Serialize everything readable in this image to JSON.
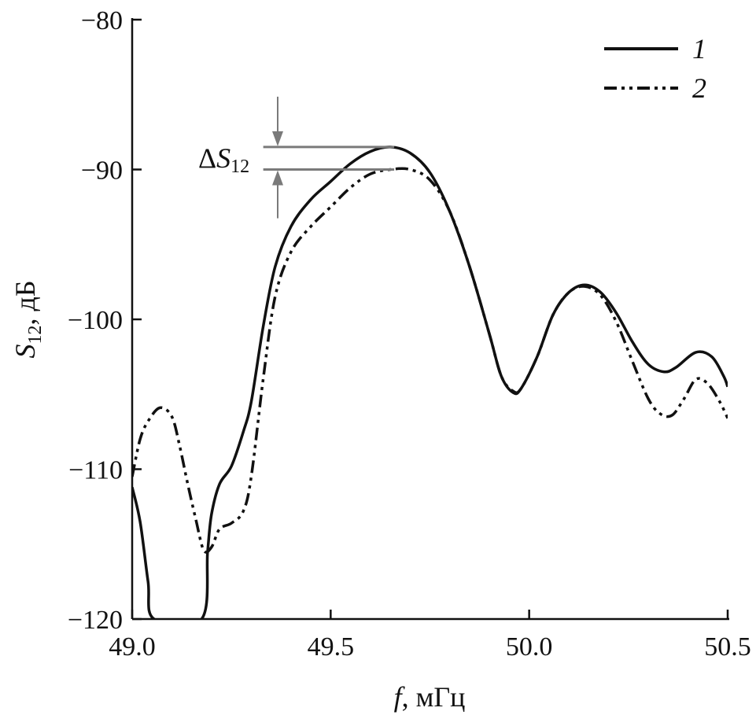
{
  "chart_data": {
    "type": "line",
    "xlabel_var": "f",
    "xlabel_unit": ", мГц",
    "ylabel_var": "S",
    "ylabel_sub": "12",
    "ylabel_unit": ", дБ",
    "xlim": [
      49.0,
      50.5
    ],
    "ylim": [
      -120,
      -80
    ],
    "x_ticks": [
      49.0,
      49.5,
      50.0,
      50.5
    ],
    "x_tick_labels": [
      "49.0",
      "49.5",
      "50.0",
      "50.5"
    ],
    "y_ticks": [
      -80,
      -90,
      -100,
      -110,
      -120
    ],
    "y_tick_labels": [
      "−80",
      "−90",
      "−100",
      "−110",
      "−120"
    ],
    "legend_position": "top-right",
    "annotation": {
      "prefix": "Δ",
      "var": "S",
      "sub": "12",
      "upper_y": -88.5,
      "lower_y": -90.0,
      "x_start": 49.35,
      "x_end": 49.66
    },
    "series": [
      {
        "name": "1",
        "style": "solid",
        "color": "#111111",
        "points": [
          [
            49.0,
            -111.2
          ],
          [
            49.02,
            -113.5
          ],
          [
            49.04,
            -117.5
          ],
          [
            49.055,
            -120.0
          ],
          [
            49.175,
            -120.0
          ],
          [
            49.19,
            -115.5
          ],
          [
            49.2,
            -113.0
          ],
          [
            49.22,
            -111.0
          ],
          [
            49.25,
            -109.8
          ],
          [
            49.28,
            -107.5
          ],
          [
            49.3,
            -105.5
          ],
          [
            49.33,
            -100.5
          ],
          [
            49.36,
            -96.5
          ],
          [
            49.4,
            -93.8
          ],
          [
            49.45,
            -92.0
          ],
          [
            49.5,
            -90.8
          ],
          [
            49.55,
            -89.6
          ],
          [
            49.6,
            -88.8
          ],
          [
            49.65,
            -88.5
          ],
          [
            49.7,
            -88.9
          ],
          [
            49.75,
            -90.2
          ],
          [
            49.8,
            -92.8
          ],
          [
            49.85,
            -96.5
          ],
          [
            49.9,
            -101.0
          ],
          [
            49.93,
            -103.8
          ],
          [
            49.96,
            -104.9
          ],
          [
            49.98,
            -104.6
          ],
          [
            50.02,
            -102.5
          ],
          [
            50.06,
            -99.7
          ],
          [
            50.1,
            -98.2
          ],
          [
            50.14,
            -97.7
          ],
          [
            50.18,
            -98.2
          ],
          [
            50.22,
            -99.6
          ],
          [
            50.26,
            -101.5
          ],
          [
            50.3,
            -103.0
          ],
          [
            50.34,
            -103.5
          ],
          [
            50.37,
            -103.2
          ],
          [
            50.42,
            -102.2
          ],
          [
            50.46,
            -102.5
          ],
          [
            50.49,
            -103.8
          ],
          [
            50.5,
            -104.5
          ]
        ]
      },
      {
        "name": "2",
        "style": "dash-dot-dot",
        "color": "#111111",
        "points": [
          [
            49.0,
            -110.5
          ],
          [
            49.02,
            -108.0
          ],
          [
            49.04,
            -106.8
          ],
          [
            49.07,
            -105.9
          ],
          [
            49.1,
            -106.5
          ],
          [
            49.12,
            -108.5
          ],
          [
            49.14,
            -111.0
          ],
          [
            49.16,
            -113.3
          ],
          [
            49.18,
            -115.4
          ],
          [
            49.2,
            -115.2
          ],
          [
            49.22,
            -114.0
          ],
          [
            49.25,
            -113.6
          ],
          [
            49.28,
            -112.8
          ],
          [
            49.3,
            -110.5
          ],
          [
            49.33,
            -104.0
          ],
          [
            49.36,
            -98.5
          ],
          [
            49.4,
            -95.5
          ],
          [
            49.45,
            -93.8
          ],
          [
            49.5,
            -92.5
          ],
          [
            49.55,
            -91.2
          ],
          [
            49.6,
            -90.3
          ],
          [
            49.65,
            -90.0
          ],
          [
            49.7,
            -90.0
          ],
          [
            49.75,
            -90.7
          ],
          [
            49.8,
            -92.8
          ],
          [
            49.85,
            -96.5
          ],
          [
            49.9,
            -101.0
          ],
          [
            49.93,
            -103.8
          ],
          [
            49.96,
            -104.8
          ],
          [
            49.98,
            -104.6
          ],
          [
            50.02,
            -102.5
          ],
          [
            50.06,
            -99.7
          ],
          [
            50.1,
            -98.2
          ],
          [
            50.14,
            -97.8
          ],
          [
            50.18,
            -98.4
          ],
          [
            50.22,
            -100.2
          ],
          [
            50.26,
            -102.8
          ],
          [
            50.3,
            -105.3
          ],
          [
            50.33,
            -106.3
          ],
          [
            50.36,
            -106.4
          ],
          [
            50.39,
            -105.3
          ],
          [
            50.42,
            -104.0
          ],
          [
            50.45,
            -104.3
          ],
          [
            50.48,
            -105.5
          ],
          [
            50.5,
            -106.6
          ]
        ]
      }
    ]
  }
}
